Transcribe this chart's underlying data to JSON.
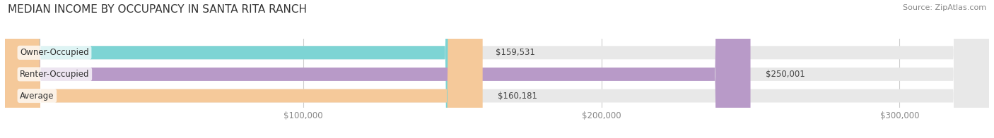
{
  "title": "MEDIAN INCOME BY OCCUPANCY IN SANTA RITA RANCH",
  "source": "Source: ZipAtlas.com",
  "categories": [
    "Owner-Occupied",
    "Renter-Occupied",
    "Average"
  ],
  "values": [
    159531,
    250001,
    160181
  ],
  "bar_colors": [
    "#7dd4d4",
    "#b89ac8",
    "#f5c99a"
  ],
  "bar_bg_color": "#e8e8e8",
  "value_labels": [
    "$159,531",
    "$250,001",
    "$160,181"
  ],
  "xmin": 0,
  "xmax": 330000,
  "xticks": [
    100000,
    200000,
    300000
  ],
  "xtick_labels": [
    "$100,000",
    "$200,000",
    "$300,000"
  ],
  "background_color": "#ffffff",
  "title_fontsize": 11,
  "label_fontsize": 8.5,
  "tick_fontsize": 8.5,
  "source_fontsize": 8
}
